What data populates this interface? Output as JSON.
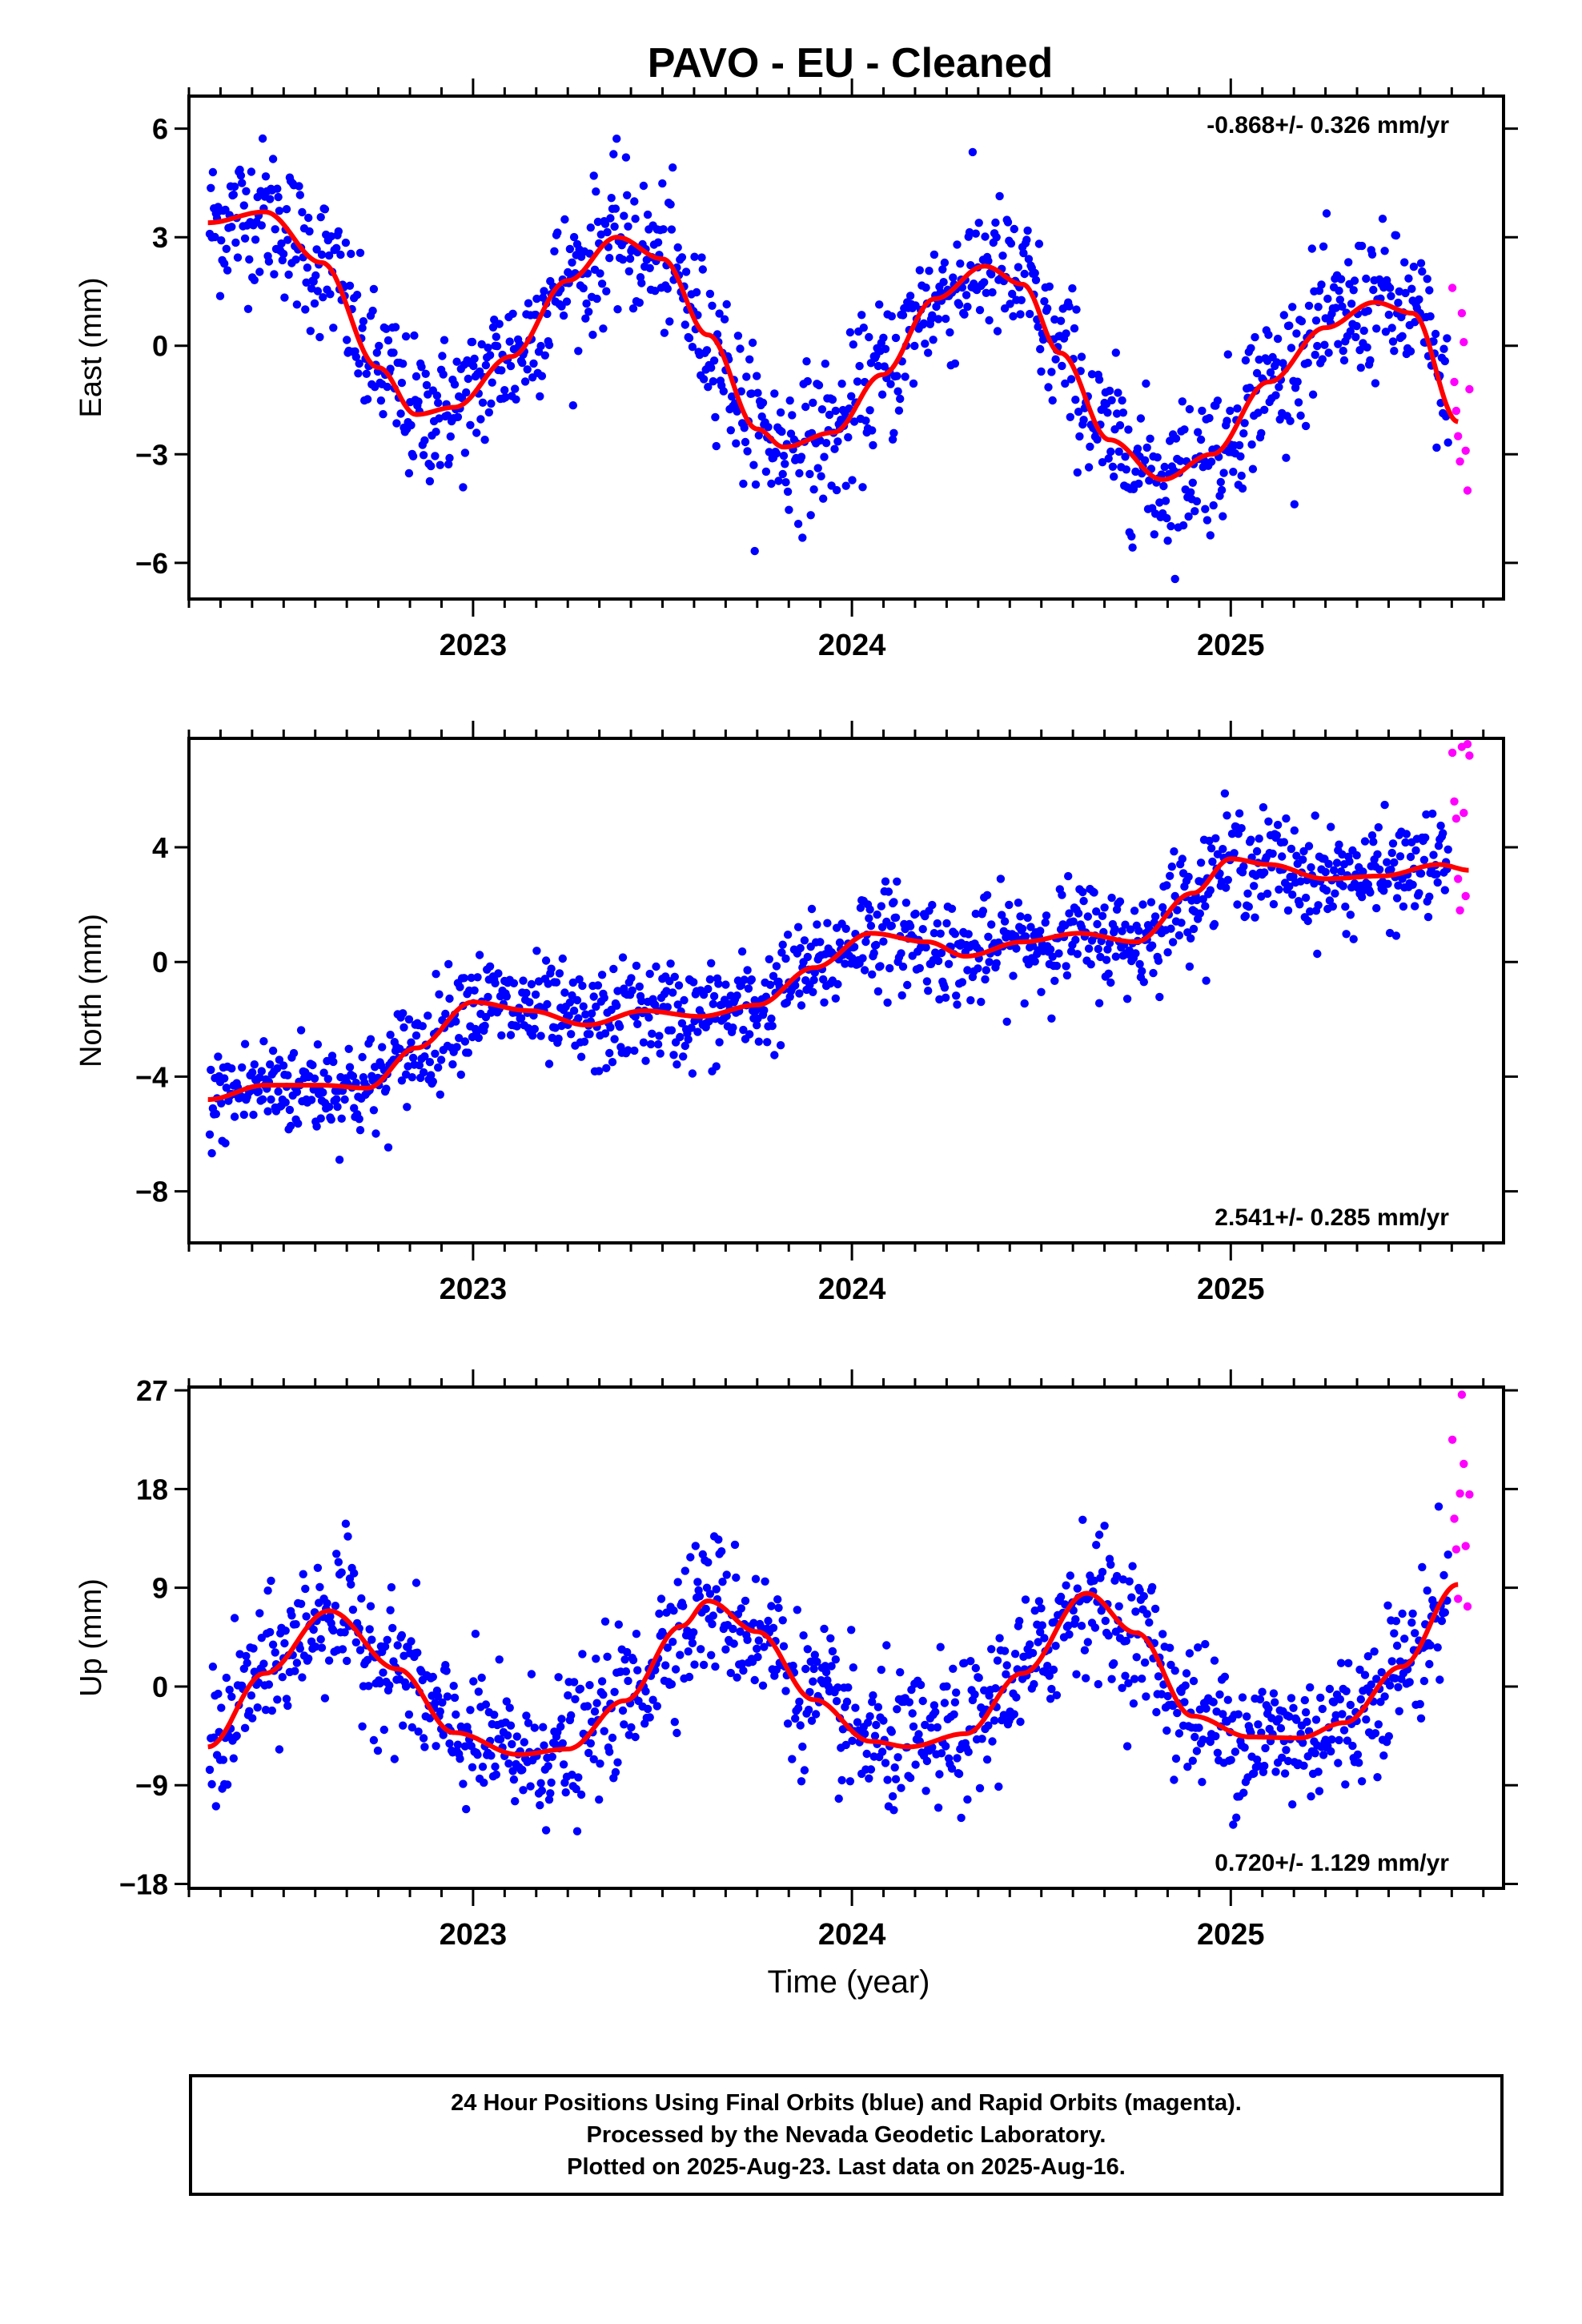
{
  "title": "PAVO  - EU - Cleaned",
  "colors": {
    "final_orbits": "#0000ff",
    "rapid_orbits": "#ff00ff",
    "fit": "#ff0000",
    "axes": "#000000"
  },
  "x_axis_label": "Time (year)",
  "footer": {
    "line1": "24 Hour Positions Using Final Orbits (blue) and Rapid Orbits (magenta).",
    "line2": "Processed by the Nevada Geodetic Laboratory.",
    "line3": "Plotted on 2025-Aug-23. Last data on 2025-Aug-16."
  },
  "chart_data": [
    {
      "type": "scatter",
      "name": "East",
      "ylabel": "East (mm)",
      "xlabel": "",
      "xlim": [
        2022.25,
        2025.72
      ],
      "ylim": [
        -7.0,
        6.9
      ],
      "yticks": [
        6,
        3,
        0,
        -3,
        -6
      ],
      "xticks": [
        2023,
        2024,
        2025
      ],
      "rate_text": "-0.868+/- 0.326 mm/yr",
      "rate_position": "top-right",
      "grid": false,
      "fit_curve": {
        "x": [
          2022.3,
          2022.45,
          2022.6,
          2022.75,
          2022.85,
          2022.95,
          2023.1,
          2023.25,
          2023.38,
          2023.5,
          2023.62,
          2023.75,
          2023.82,
          2023.95,
          2024.08,
          2024.22,
          2024.35,
          2024.45,
          2024.55,
          2024.68,
          2024.82,
          2024.95,
          2025.1,
          2025.25,
          2025.38,
          2025.48,
          2025.6
        ],
        "y": [
          3.4,
          3.7,
          2.3,
          -0.6,
          -1.9,
          -1.7,
          -0.3,
          1.8,
          3.0,
          2.4,
          0.3,
          -2.3,
          -2.8,
          -2.4,
          -0.8,
          1.3,
          2.2,
          1.7,
          -0.2,
          -2.6,
          -3.7,
          -3.0,
          -1.0,
          0.5,
          1.2,
          0.9,
          -2.1
        ]
      },
      "seasonal": {
        "offset": 0.0,
        "trend_per_yr": -0.868,
        "amplitude": 2.8,
        "peak_phase": 0.38
      },
      "scatter_sd": 1.0,
      "rapid_points": [
        {
          "x": 2025.585,
          "y": 1.6
        },
        {
          "x": 2025.59,
          "y": -1.0
        },
        {
          "x": 2025.595,
          "y": -1.8
        },
        {
          "x": 2025.6,
          "y": -2.5
        },
        {
          "x": 2025.605,
          "y": -3.2
        },
        {
          "x": 2025.61,
          "y": 0.9
        },
        {
          "x": 2025.615,
          "y": 0.1
        },
        {
          "x": 2025.62,
          "y": -2.9
        },
        {
          "x": 2025.625,
          "y": -4.0
        },
        {
          "x": 2025.63,
          "y": -1.2
        }
      ]
    },
    {
      "type": "scatter",
      "name": "North",
      "ylabel": "North (mm)",
      "xlabel": "",
      "xlim": [
        2022.25,
        2025.72
      ],
      "ylim": [
        -9.8,
        7.8
      ],
      "yticks": [
        4,
        0,
        -4,
        -8
      ],
      "xticks": [
        2023,
        2024,
        2025
      ],
      "rate_text": "2.541+/- 0.285 mm/yr",
      "rate_position": "bottom-right",
      "grid": false,
      "fit_curve": {
        "x": [
          2022.3,
          2022.45,
          2022.6,
          2022.72,
          2022.85,
          2023.0,
          2023.15,
          2023.3,
          2023.45,
          2023.6,
          2023.75,
          2023.9,
          2024.05,
          2024.2,
          2024.3,
          2024.45,
          2024.6,
          2024.75,
          2024.9,
          2025.0,
          2025.1,
          2025.25,
          2025.4,
          2025.55,
          2025.63
        ],
        "y": [
          -4.8,
          -4.3,
          -4.3,
          -4.4,
          -3.0,
          -1.4,
          -1.7,
          -2.2,
          -1.7,
          -1.9,
          -1.5,
          -0.2,
          1.0,
          0.7,
          0.2,
          0.7,
          1.0,
          0.7,
          2.4,
          3.6,
          3.4,
          2.9,
          3.0,
          3.4,
          3.2
        ]
      },
      "seasonal": {
        "offset": -0.4,
        "trend_per_yr": 2.541,
        "amplitude": 0.6,
        "peak_phase": 0.05
      },
      "scatter_sd": 0.9,
      "rapid_points": [
        {
          "x": 2025.585,
          "y": 7.3
        },
        {
          "x": 2025.59,
          "y": 5.6
        },
        {
          "x": 2025.595,
          "y": 5.0
        },
        {
          "x": 2025.6,
          "y": 2.9
        },
        {
          "x": 2025.605,
          "y": 1.8
        },
        {
          "x": 2025.61,
          "y": 7.5
        },
        {
          "x": 2025.615,
          "y": 5.2
        },
        {
          "x": 2025.62,
          "y": 2.3
        },
        {
          "x": 2025.625,
          "y": 7.6
        },
        {
          "x": 2025.63,
          "y": 7.2
        }
      ]
    },
    {
      "type": "scatter",
      "name": "Up",
      "ylabel": "Up (mm)",
      "xlabel": "Time (year)",
      "xlim": [
        2022.25,
        2025.72
      ],
      "ylim": [
        -18.4,
        27.3
      ],
      "yticks": [
        27,
        18,
        9,
        0,
        -9,
        -18
      ],
      "xticks": [
        2023,
        2024,
        2025
      ],
      "rate_text": "0.720+/- 1.129 mm/yr",
      "rate_position": "bottom-right",
      "grid": false,
      "fit_curve": {
        "x": [
          2022.3,
          2022.45,
          2022.62,
          2022.8,
          2022.95,
          2023.12,
          2023.25,
          2023.4,
          2023.55,
          2023.62,
          2023.75,
          2023.9,
          2024.05,
          2024.15,
          2024.3,
          2024.45,
          2024.62,
          2024.75,
          2024.9,
          2025.05,
          2025.18,
          2025.3,
          2025.45,
          2025.6
        ],
        "y": [
          -5.5,
          1.2,
          6.9,
          1.6,
          -4.2,
          -6.2,
          -5.7,
          -1.3,
          5.5,
          7.8,
          5.0,
          -1.2,
          -5.0,
          -5.5,
          -4.3,
          1.2,
          8.5,
          4.9,
          -2.7,
          -4.6,
          -4.7,
          -3.3,
          1.8,
          9.3
        ]
      },
      "seasonal": {
        "offset": 0.6,
        "trend_per_yr": 0.72,
        "amplitude": 6.8,
        "peak_phase": 0.62
      },
      "scatter_sd": 3.2,
      "rapid_points": [
        {
          "x": 2025.585,
          "y": 22.5
        },
        {
          "x": 2025.59,
          "y": 15.3
        },
        {
          "x": 2025.595,
          "y": 12.5
        },
        {
          "x": 2025.6,
          "y": 8.0
        },
        {
          "x": 2025.605,
          "y": 17.6
        },
        {
          "x": 2025.61,
          "y": 26.6
        },
        {
          "x": 2025.615,
          "y": 20.3
        },
        {
          "x": 2025.62,
          "y": 12.8
        },
        {
          "x": 2025.625,
          "y": 7.3
        },
        {
          "x": 2025.63,
          "y": 17.5
        }
      ]
    }
  ]
}
